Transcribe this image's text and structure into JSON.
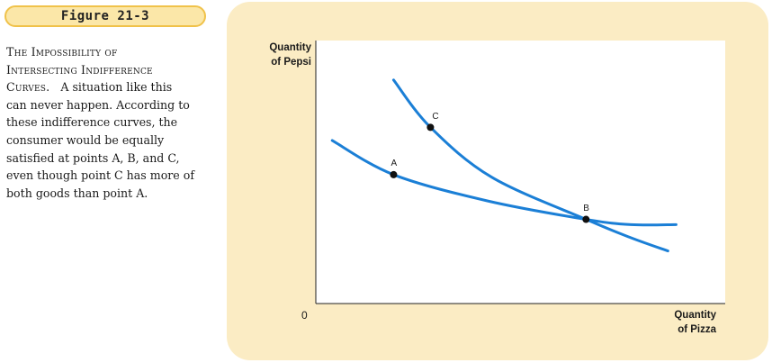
{
  "figure": {
    "label": "Figure 21-3",
    "caption_title_line1": "The Impossibility of",
    "caption_title_line2": "Intersecting Indifference",
    "caption_title_line3": "Curves.",
    "caption_body_line3": "A situation like this",
    "caption_body_lines": [
      "can never happen. According to",
      "these indifference curves, the",
      "consumer would be equally",
      "satisfied at points A, B, and C,",
      "even though point C has more of",
      "both goods than point A."
    ]
  },
  "chart_data": {
    "type": "line",
    "ylabel_line1": "Quantity",
    "ylabel_line2": "of Pepsi",
    "xlabel_line1": "Quantity",
    "xlabel_line2": "of Pizza",
    "origin_label": "0",
    "curve_color": "#1b7fd6",
    "points": [
      {
        "label": "A",
        "x": 0.19,
        "y": 0.49
      },
      {
        "label": "B",
        "x": 0.66,
        "y": 0.32
      },
      {
        "label": "C",
        "x": 0.28,
        "y": 0.67
      }
    ],
    "series": [
      {
        "values": [
          [
            0.04,
            0.62
          ],
          [
            0.19,
            0.49
          ],
          [
            0.42,
            0.39
          ],
          [
            0.66,
            0.32
          ],
          [
            0.77,
            0.3
          ],
          [
            0.88,
            0.3
          ]
        ]
      },
      {
        "values": [
          [
            0.19,
            0.85
          ],
          [
            0.28,
            0.67
          ],
          [
            0.43,
            0.48
          ],
          [
            0.66,
            0.32
          ],
          [
            0.77,
            0.25
          ],
          [
            0.86,
            0.2
          ]
        ]
      }
    ]
  }
}
